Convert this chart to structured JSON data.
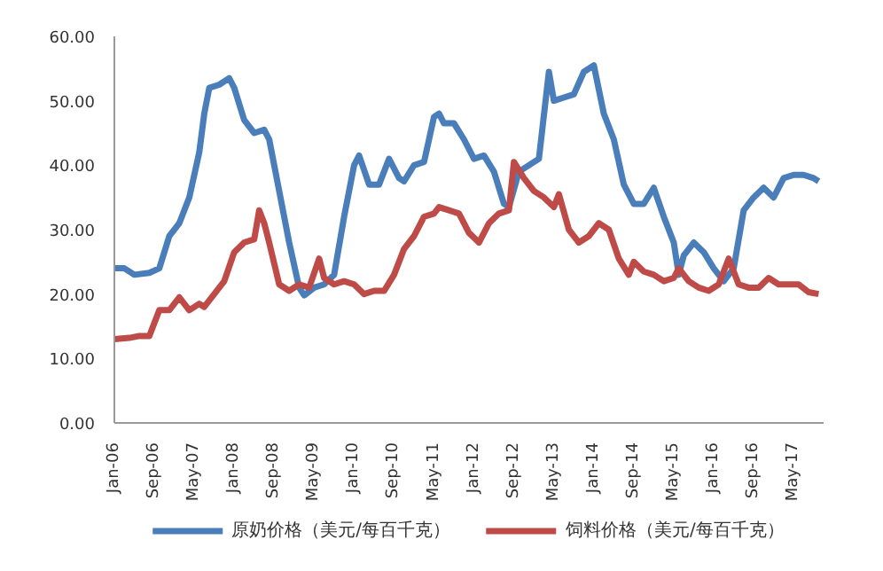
{
  "chart_data": {
    "type": "line",
    "legend": "bottom",
    "grid": false,
    "line_style": "solid",
    "marker": "none",
    "xlim": [
      "2006-01",
      "2017-11"
    ],
    "xticks": [
      {
        "value": "2006-01",
        "label": "Jan-06"
      },
      {
        "value": "2006-09",
        "label": "Sep-06"
      },
      {
        "value": "2007-05",
        "label": "May-07"
      },
      {
        "value": "2008-01",
        "label": "Jan-08"
      },
      {
        "value": "2008-09",
        "label": "Sep-08"
      },
      {
        "value": "2009-05",
        "label": "May-09"
      },
      {
        "value": "2010-01",
        "label": "Jan-10"
      },
      {
        "value": "2010-09",
        "label": "Sep-10"
      },
      {
        "value": "2011-05",
        "label": "May-11"
      },
      {
        "value": "2012-01",
        "label": "Jan-12"
      },
      {
        "value": "2012-09",
        "label": "Sep-12"
      },
      {
        "value": "2013-05",
        "label": "May-13"
      },
      {
        "value": "2014-01",
        "label": "Jan-14"
      },
      {
        "value": "2014-09",
        "label": "Sep-14"
      },
      {
        "value": "2015-05",
        "label": "May-15"
      },
      {
        "value": "2016-01",
        "label": "Jan-16"
      },
      {
        "value": "2016-09",
        "label": "Sep-16"
      },
      {
        "value": "2017-05",
        "label": "May-17"
      }
    ],
    "ylim": [
      0,
      60
    ],
    "yticks": [
      {
        "value": 0,
        "label": "0.00"
      },
      {
        "value": 10,
        "label": "10.00"
      },
      {
        "value": 20,
        "label": "20.00"
      },
      {
        "value": 30,
        "label": "30.00"
      },
      {
        "value": 40,
        "label": "40.00"
      },
      {
        "value": 50,
        "label": "50.00"
      },
      {
        "value": 60,
        "label": "60.00"
      }
    ],
    "series": [
      {
        "name": "原奶价格（美元/每百千克）",
        "color": "#4a7ebb",
        "x": [
          "2006-01",
          "2006-03",
          "2006-05",
          "2006-08",
          "2006-10",
          "2006-12",
          "2007-02",
          "2007-04",
          "2007-06",
          "2007-07",
          "2007-08",
          "2007-10",
          "2007-12",
          "2008-01",
          "2008-03",
          "2008-05",
          "2008-07",
          "2008-08",
          "2008-10",
          "2008-12",
          "2009-02",
          "2009-03",
          "2009-05",
          "2009-07",
          "2009-09",
          "2009-11",
          "2010-01",
          "2010-02",
          "2010-04",
          "2010-06",
          "2010-08",
          "2010-10",
          "2010-11",
          "2011-01",
          "2011-03",
          "2011-05",
          "2011-06",
          "2011-07",
          "2011-09",
          "2011-11",
          "2012-01",
          "2012-03",
          "2012-05",
          "2012-07",
          "2012-08",
          "2012-10",
          "2012-12",
          "2013-02",
          "2013-04",
          "2013-05",
          "2013-07",
          "2013-09",
          "2013-11",
          "2014-01",
          "2014-03",
          "2014-05",
          "2014-07",
          "2014-09",
          "2014-11",
          "2015-01",
          "2015-03",
          "2015-05",
          "2015-06",
          "2015-07",
          "2015-09",
          "2015-11",
          "2016-01",
          "2016-03",
          "2016-05",
          "2016-07",
          "2016-09",
          "2016-11",
          "2017-01",
          "2017-03",
          "2017-05",
          "2017-07",
          "2017-09",
          "2017-10"
        ],
        "values": [
          24,
          24,
          23,
          23.3,
          24,
          29,
          31,
          35,
          42,
          48,
          52,
          52.5,
          53.5,
          52,
          47,
          45,
          45.5,
          44,
          36,
          28,
          21,
          19.8,
          21,
          21.5,
          23,
          32,
          40,
          41.5,
          37,
          37,
          41,
          38,
          37.5,
          40,
          40.5,
          47.5,
          48,
          46.5,
          46.5,
          44,
          41,
          41.5,
          39,
          34,
          33.5,
          39,
          40,
          41,
          54.5,
          50,
          50.5,
          51,
          54.5,
          55.5,
          48,
          44,
          37,
          34,
          34,
          36.5,
          32,
          28,
          23,
          26,
          28,
          26.5,
          24,
          22,
          24,
          33,
          35,
          36.5,
          35,
          38,
          38.5,
          38.5,
          38,
          37.5
        ]
      },
      {
        "name": "饲料价格（美元/每百千克）",
        "color": "#be4b48",
        "x": [
          "2006-01",
          "2006-04",
          "2006-06",
          "2006-08",
          "2006-10",
          "2006-12",
          "2007-02",
          "2007-04",
          "2007-06",
          "2007-07",
          "2007-09",
          "2007-11",
          "2008-01",
          "2008-03",
          "2008-05",
          "2008-06",
          "2008-07",
          "2008-08",
          "2008-10",
          "2008-12",
          "2009-02",
          "2009-04",
          "2009-06",
          "2009-07",
          "2009-09",
          "2009-11",
          "2010-01",
          "2010-03",
          "2010-05",
          "2010-07",
          "2010-09",
          "2010-11",
          "2011-01",
          "2011-03",
          "2011-05",
          "2011-06",
          "2011-08",
          "2011-10",
          "2011-12",
          "2012-02",
          "2012-04",
          "2012-06",
          "2012-08",
          "2012-09",
          "2012-11",
          "2013-01",
          "2013-03",
          "2013-05",
          "2013-06",
          "2013-08",
          "2013-10",
          "2013-12",
          "2014-02",
          "2014-04",
          "2014-06",
          "2014-08",
          "2014-09",
          "2014-11",
          "2015-01",
          "2015-03",
          "2015-05",
          "2015-06",
          "2015-08",
          "2015-10",
          "2015-12",
          "2016-02",
          "2016-04",
          "2016-06",
          "2016-08",
          "2016-10",
          "2016-12",
          "2017-02",
          "2017-04",
          "2017-06",
          "2017-08",
          "2017-10"
        ],
        "values": [
          13,
          13.2,
          13.5,
          13.5,
          17.5,
          17.5,
          19.5,
          17.5,
          18.5,
          18,
          20,
          22,
          26.5,
          28,
          28.5,
          33,
          31,
          28,
          21.5,
          20.5,
          21.5,
          21,
          25.5,
          22.5,
          21.5,
          22,
          21.5,
          20,
          20.5,
          20.5,
          23,
          27,
          29,
          32,
          32.5,
          33.5,
          33,
          32.5,
          29.5,
          28,
          31,
          32.5,
          33,
          40.5,
          38,
          36,
          35,
          33.5,
          35.5,
          30,
          28,
          29,
          31,
          30,
          25.5,
          23,
          25,
          23.5,
          23,
          22,
          22.5,
          24,
          22,
          21,
          20.5,
          21.5,
          25.5,
          21.5,
          21,
          21,
          22.5,
          21.5,
          21.5,
          21.5,
          20.3,
          20
        ]
      }
    ]
  }
}
